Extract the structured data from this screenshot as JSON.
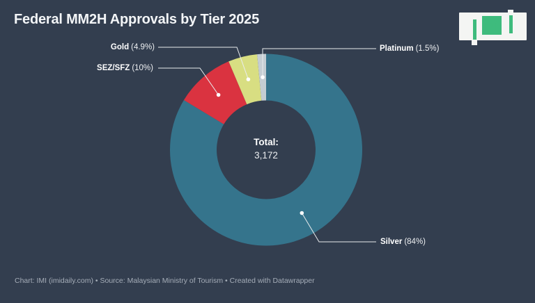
{
  "header": {
    "title": "Federal MM2H Approvals by Tier 2025"
  },
  "logo": {
    "alt": "IMI",
    "letter_m": "M",
    "green": "#3EBB7D"
  },
  "donut_center": {
    "label": "Total:",
    "value": "3,172"
  },
  "slices": [
    {
      "name": "Silver",
      "pct": "(84%)"
    },
    {
      "name": "SEZ/SFZ",
      "pct": "(10%)"
    },
    {
      "name": "Gold",
      "pct": "(4.9%)"
    },
    {
      "name": "Platinum",
      "pct": "(1.5%)"
    }
  ],
  "chart_data": {
    "type": "pie",
    "subtype": "donut",
    "title": "Federal MM2H Approvals by Tier 2025",
    "categories": [
      "Silver",
      "SEZ/SFZ",
      "Gold",
      "Platinum"
    ],
    "values": [
      84,
      10,
      4.9,
      1.5
    ],
    "unit": "%",
    "colors": [
      "#35748C",
      "#DA3340",
      "#D8DE82",
      "#C4CDD3"
    ],
    "center_label": "Total:",
    "center_value": "3,172",
    "total": 3172,
    "start_angle_deg": 0,
    "direction": "clockwise",
    "legend_position": "external-callouts"
  },
  "footer": {
    "text": "Chart: IMI (imidaily.com) • Source: Malaysian Ministry of Tourism • Created with Datawrapper"
  },
  "colors": {
    "background": "#333E4F",
    "callout_line": "#E9ECEE",
    "dot": "#FFFFFF"
  }
}
